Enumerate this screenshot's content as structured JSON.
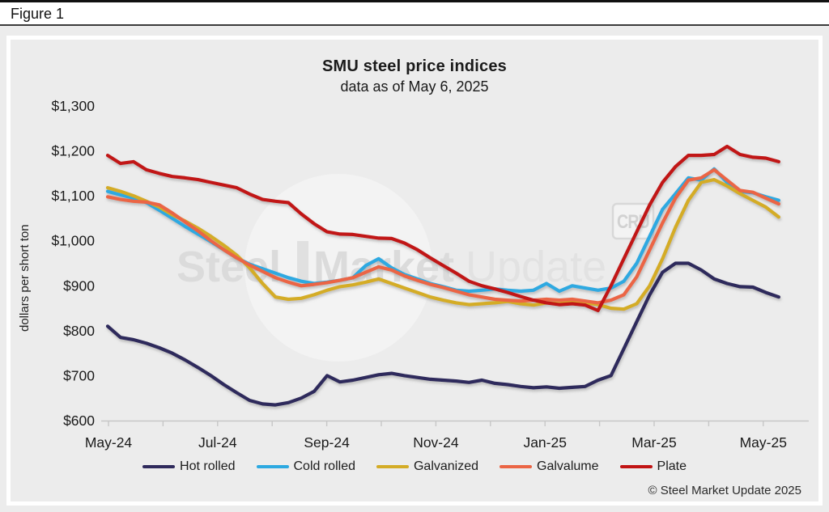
{
  "figure_label": "Figure 1",
  "chart": {
    "title": "SMU steel price indices",
    "subtitle": "data as of May 6, 2025",
    "y_axis_label": "dollars per short ton",
    "copyright": "© Steel Market Update 2025",
    "watermark": {
      "word1": "Steel",
      "word2": "Market",
      "word3": "Update",
      "badge": "CRU"
    }
  },
  "chart_data": {
    "type": "line",
    "title": "SMU steel price indices",
    "subtitle": "data as of May 6, 2025",
    "xlabel": "",
    "ylabel": "dollars per short ton",
    "ylim": [
      600,
      1300
    ],
    "grid": false,
    "legend_position": "bottom",
    "x_unit": "weekly, May-2024 through May-6-2025",
    "x_tick_labels": [
      "May-24",
      "",
      "Jul-24",
      "",
      "Sep-24",
      "",
      "Nov-24",
      "",
      "Jan-25",
      "",
      "Mar-25",
      "",
      "May-25"
    ],
    "y_ticks": [
      {
        "value": 600,
        "label": "$600"
      },
      {
        "value": 700,
        "label": "$700"
      },
      {
        "value": 800,
        "label": "$800"
      },
      {
        "value": 900,
        "label": "$900"
      },
      {
        "value": 1000,
        "label": "$1,000"
      },
      {
        "value": 1100,
        "label": "$1,100"
      },
      {
        "value": 1200,
        "label": "$1,200"
      },
      {
        "value": 1300,
        "label": "$1,300"
      }
    ],
    "series": [
      {
        "name": "Hot rolled",
        "color": "#2f2a5c",
        "values": [
          810,
          785,
          780,
          772,
          762,
          750,
          735,
          718,
          700,
          680,
          662,
          645,
          637,
          635,
          640,
          650,
          665,
          700,
          686,
          690,
          696,
          702,
          705,
          700,
          696,
          692,
          690,
          688,
          685,
          690,
          683,
          680,
          676,
          673,
          675,
          672,
          674,
          676,
          690,
          700,
          760,
          820,
          880,
          930,
          950,
          950,
          935,
          915,
          905,
          898,
          897,
          885,
          875
        ]
      },
      {
        "name": "Cold rolled",
        "color": "#2da9e1",
        "values": [
          1110,
          1102,
          1095,
          1085,
          1068,
          1050,
          1032,
          1015,
          998,
          980,
          962,
          948,
          938,
          928,
          918,
          910,
          905,
          908,
          912,
          918,
          945,
          960,
          940,
          925,
          915,
          905,
          898,
          890,
          888,
          890,
          893,
          890,
          888,
          890,
          905,
          888,
          900,
          895,
          890,
          895,
          910,
          950,
          1010,
          1070,
          1105,
          1140,
          1135,
          1160,
          1130,
          1110,
          1107,
          1098,
          1090
        ]
      },
      {
        "name": "Galvanized",
        "color": "#d4ac27",
        "values": [
          1118,
          1110,
          1100,
          1088,
          1075,
          1058,
          1044,
          1028,
          1010,
          990,
          968,
          940,
          905,
          875,
          870,
          872,
          880,
          890,
          898,
          902,
          908,
          915,
          905,
          895,
          885,
          875,
          868,
          862,
          858,
          860,
          862,
          865,
          860,
          857,
          862,
          860,
          865,
          862,
          858,
          850,
          848,
          860,
          900,
          960,
          1030,
          1090,
          1130,
          1136,
          1122,
          1105,
          1090,
          1075,
          1053
        ]
      },
      {
        "name": "Galvalume",
        "color": "#eb6545",
        "values": [
          1098,
          1092,
          1088,
          1086,
          1080,
          1062,
          1042,
          1022,
          1000,
          980,
          962,
          946,
          932,
          918,
          908,
          900,
          903,
          907,
          912,
          918,
          930,
          942,
          935,
          922,
          912,
          903,
          896,
          888,
          880,
          875,
          870,
          868,
          866,
          868,
          870,
          868,
          870,
          866,
          862,
          868,
          880,
          920,
          980,
          1040,
          1095,
          1135,
          1140,
          1158,
          1135,
          1112,
          1108,
          1095,
          1082
        ]
      },
      {
        "name": "Plate",
        "color": "#c11414",
        "values": [
          1190,
          1172,
          1176,
          1158,
          1150,
          1143,
          1140,
          1136,
          1130,
          1124,
          1118,
          1104,
          1092,
          1088,
          1085,
          1060,
          1038,
          1020,
          1015,
          1014,
          1010,
          1006,
          1005,
          995,
          980,
          962,
          945,
          928,
          910,
          900,
          893,
          885,
          876,
          868,
          862,
          858,
          860,
          857,
          845,
          900,
          960,
          1020,
          1080,
          1130,
          1165,
          1190,
          1190,
          1192,
          1210,
          1192,
          1186,
          1184,
          1176
        ]
      }
    ]
  }
}
